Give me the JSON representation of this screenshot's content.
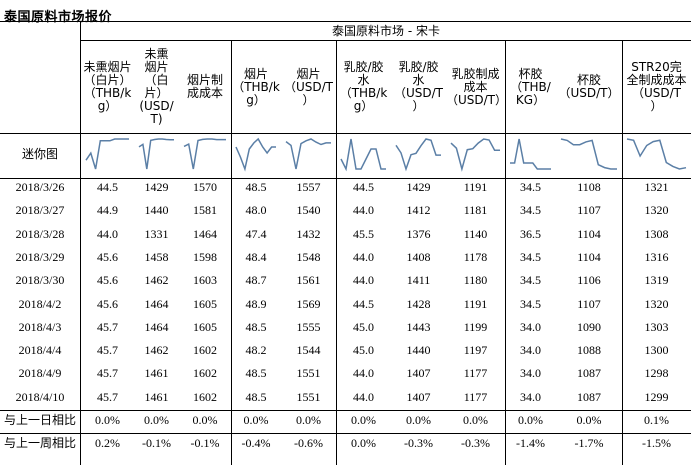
{
  "title": "泰国原料市场报价",
  "group_header": "泰国原料市场 - 宋卡",
  "sparkline_label": "迷你图",
  "columns": [
    "未熏烟片（白片）（THB/kg）",
    "未熏烟片（白片）（USD/T）",
    "烟片制成成本",
    "烟片（THB/kg）",
    "烟片（USD/T）",
    "乳胶/胶水（THB/kg）",
    "乳胶/胶水（USD/T）",
    "乳胶制成成本（USD/T）",
    "杯胶（THB/KG）",
    "杯胶（USD/T）",
    "STR20完全制成成本（USD/T）"
  ],
  "rows": [
    {
      "date": "2018/3/26",
      "values": [
        "44.5",
        "1429",
        "1570",
        "48.5",
        "1557",
        "44.5",
        "1429",
        "1191",
        "34.5",
        "1108",
        "1321"
      ]
    },
    {
      "date": "2018/3/27",
      "values": [
        "44.9",
        "1440",
        "1581",
        "48.0",
        "1540",
        "44.0",
        "1412",
        "1181",
        "34.5",
        "1107",
        "1320"
      ]
    },
    {
      "date": "2018/3/28",
      "values": [
        "44.0",
        "1331",
        "1464",
        "47.4",
        "1432",
        "45.5",
        "1376",
        "1140",
        "36.5",
        "1104",
        "1308"
      ]
    },
    {
      "date": "2018/3/29",
      "values": [
        "45.6",
        "1458",
        "1598",
        "48.4",
        "1548",
        "44.0",
        "1408",
        "1178",
        "34.5",
        "1104",
        "1316"
      ]
    },
    {
      "date": "2018/3/30",
      "values": [
        "45.6",
        "1462",
        "1603",
        "48.7",
        "1561",
        "44.0",
        "1411",
        "1180",
        "34.5",
        "1106",
        "1319"
      ]
    },
    {
      "date": "2018/4/2",
      "values": [
        "45.6",
        "1464",
        "1605",
        "48.9",
        "1569",
        "44.5",
        "1428",
        "1191",
        "34.5",
        "1107",
        "1320"
      ]
    },
    {
      "date": "2018/4/3",
      "values": [
        "45.7",
        "1464",
        "1605",
        "48.5",
        "1555",
        "45.0",
        "1443",
        "1199",
        "34.0",
        "1090",
        "1303"
      ]
    },
    {
      "date": "2018/4/4",
      "values": [
        "45.7",
        "1462",
        "1602",
        "48.2",
        "1544",
        "45.0",
        "1440",
        "1197",
        "34.0",
        "1088",
        "1300"
      ]
    },
    {
      "date": "2018/4/9",
      "values": [
        "45.7",
        "1461",
        "1602",
        "48.5",
        "1551",
        "44.0",
        "1407",
        "1177",
        "34.0",
        "1087",
        "1298"
      ]
    },
    {
      "date": "2018/4/10",
      "values": [
        "45.7",
        "1461",
        "1602",
        "48.5",
        "1551",
        "44.0",
        "1407",
        "1177",
        "34.0",
        "1087",
        "1299"
      ]
    }
  ],
  "comparisons": [
    {
      "label": "与上一日相比",
      "values": [
        "0.0%",
        "0.0%",
        "0.0%",
        "0.0%",
        "0.0%",
        "0.0%",
        "0.0%",
        "0.0%",
        "0.0%",
        "0.0%",
        "0.1%"
      ]
    },
    {
      "label": "与上一周相比",
      "values": [
        "0.2%",
        "-0.1%",
        "-0.1%",
        "-0.4%",
        "-0.6%",
        "0.0%",
        "-0.3%",
        "-0.3%",
        "-1.4%",
        "-1.7%",
        "-1.5%"
      ]
    }
  ],
  "colors": {
    "sparkline": "#5b7fa6",
    "text": "#000000",
    "grid": "#000000"
  }
}
